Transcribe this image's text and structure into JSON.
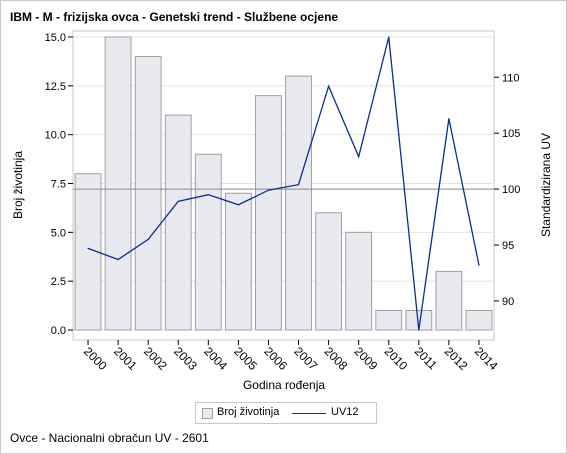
{
  "title": "IBM - M - frizijska ovca - Genetski trend - Službene ocjene",
  "footnote": "Ovce - Nacionalni obračun UV - 2601",
  "chart_data": {
    "type": "bar",
    "xlabel": "Godina rođenja",
    "ylabel": "Broj životinja",
    "y2label": "Standardizirana UV",
    "categories": [
      "2000",
      "2001",
      "2002",
      "2003",
      "2004",
      "2005",
      "2006",
      "2007",
      "2008",
      "2009",
      "2010",
      "2011",
      "2012",
      "2014"
    ],
    "series": [
      {
        "name": "Broj životinja",
        "type": "bar",
        "axis": "left",
        "color": "#e8eaf0",
        "values": [
          8,
          15,
          14,
          11,
          9,
          7,
          12,
          13,
          6,
          5,
          1,
          1,
          3,
          1
        ]
      },
      {
        "name": "UV12",
        "type": "line",
        "axis": "right",
        "color": "#0b2e8c",
        "values": [
          94.7,
          93.7,
          95.5,
          98.9,
          99.5,
          98.6,
          99.9,
          100.4,
          109.2,
          102.9,
          113.6,
          87.4,
          106.3,
          93.2
        ]
      }
    ],
    "ylim": [
      0,
      15
    ],
    "y2lim": [
      87.4,
      113.6
    ],
    "yticks": [
      "0.0",
      "2.5",
      "5.0",
      "7.5",
      "10.0",
      "12.5",
      "15.0"
    ],
    "y2ticks": [
      "90",
      "95",
      "100",
      "105",
      "110"
    ],
    "reference_line_y2": 100,
    "grid": true,
    "legend_position": "bottom"
  },
  "colors": {
    "bar_fill": "#e8eaf0",
    "bar_stroke": "#a0a0a0",
    "line": "#0b2e8c",
    "grid": "#e4e4e4",
    "refline": "#888888"
  }
}
